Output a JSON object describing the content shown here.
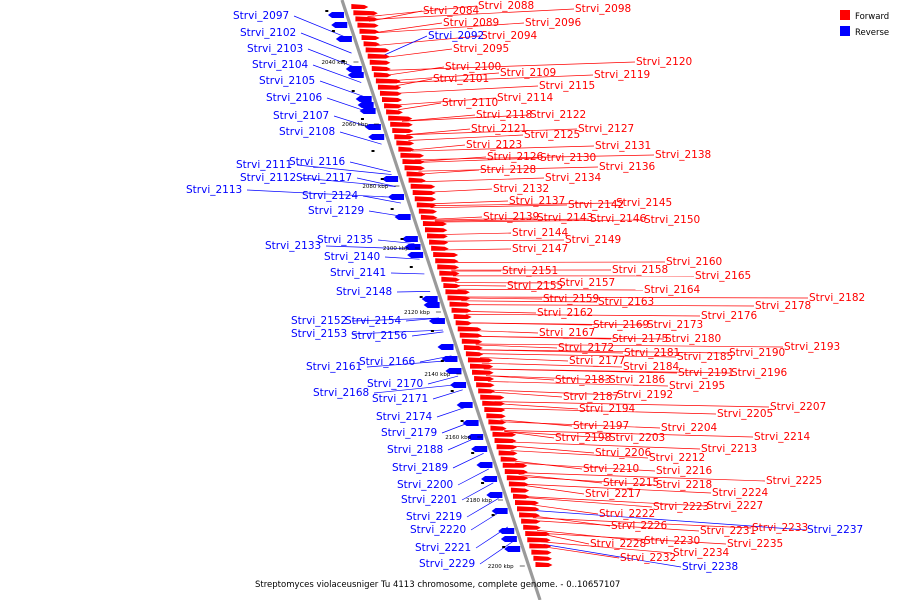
{
  "caption": "Streptomyces violaceusniger Tu 4113 chromosome, complete genome. - 0..10657107",
  "legend": [
    {
      "label": "Forward",
      "color": "#ff0000"
    },
    {
      "label": "Reverse",
      "color": "#0000ff"
    }
  ],
  "colors": {
    "forward": "#ff0000",
    "reverse": "#0000ff",
    "backbone": "#999999"
  },
  "scale_ticks": [
    "2040 kbp",
    "2060 kbp",
    "2080 kbp",
    "2100 kbp",
    "2120 kbp",
    "2140 kbp",
    "2160 kbp",
    "2180 kbp",
    "2200 kbp"
  ],
  "forward_genes": [
    "Strvi_2084",
    "Strvi_2088",
    "Strvi_2089",
    "Strvi_2096",
    "Strvi_2098",
    "Strvi_2094",
    "Strvi_2095",
    "Strvi_2100",
    "Strvi_2101",
    "Strvi_2109",
    "Strvi_2120",
    "Strvi_2119",
    "Strvi_2115",
    "Strvi_2114",
    "Strvi_2110",
    "Strvi_2118",
    "Strvi_2122",
    "Strvi_2127",
    "Strvi_2121",
    "Strvi_2125",
    "Strvi_2123",
    "Strvi_2131",
    "Strvi_2126",
    "Strvi_2130",
    "Strvi_2138",
    "Strvi_2136",
    "Strvi_2128",
    "Strvi_2134",
    "Strvi_2132",
    "Strvi_2137",
    "Strvi_2142",
    "Strvi_2145",
    "Strvi_2139",
    "Strvi_2143",
    "Strvi_2146",
    "Strvi_2150",
    "Strvi_2144",
    "Strvi_2149",
    "Strvi_2147",
    "Strvi_2160",
    "Strvi_2151",
    "Strvi_2158",
    "Strvi_2165",
    "Strvi_2157",
    "Strvi_2155",
    "Strvi_2164",
    "Strvi_2159",
    "Strvi_2163",
    "Strvi_2182",
    "Strvi_2178",
    "Strvi_2162",
    "Strvi_2176",
    "Strvi_2169",
    "Strvi_2173",
    "Strvi_2167",
    "Strvi_2175",
    "Strvi_2180",
    "Strvi_2193",
    "Strvi_2172",
    "Strvi_2181",
    "Strvi_2185",
    "Strvi_2190",
    "Strvi_2177",
    "Strvi_2184",
    "Strvi_2191",
    "Strvi_2196",
    "Strvi_2183",
    "Strvi_2186",
    "Strvi_2195",
    "Strvi_2187",
    "Strvi_2192",
    "Strvi_2207",
    "Strvi_2194",
    "Strvi_2205",
    "Strvi_2197",
    "Strvi_2204",
    "Strvi_2214",
    "Strvi_2198",
    "Strvi_2203",
    "Strvi_2213",
    "Strvi_2206",
    "Strvi_2212",
    "Strvi_2210",
    "Strvi_2216",
    "Strvi_2225",
    "Strvi_2215",
    "Strvi_2218",
    "Strvi_2224",
    "Strvi_2217",
    "Strvi_2223",
    "Strvi_2227",
    "Strvi_2222",
    "Strvi_2231",
    "Strvi_2233",
    "Strvi_2226",
    "Strvi_2228",
    "Strvi_2230",
    "Strvi_2235",
    "Strvi_2234",
    "Strvi_2232"
  ],
  "reverse_genes": [
    "Strvi_2097",
    "Strvi_2102",
    "Strvi_2103",
    "Strvi_2104",
    "Strvi_2105",
    "Strvi_2106",
    "Strvi_2107",
    "Strvi_2108",
    "Strvi_2111",
    "Strvi_2116",
    "Strvi_2112",
    "Strvi_2117",
    "Strvi_2113",
    "Strvi_2124",
    "Strvi_2129",
    "Strvi_2135",
    "Strvi_2133",
    "Strvi_2140",
    "Strvi_2141",
    "Strvi_2148",
    "Strvi_2152",
    "Strvi_2154",
    "Strvi_2153",
    "Strvi_2156",
    "Strvi_2166",
    "Strvi_2161",
    "Strvi_2170",
    "Strvi_2168",
    "Strvi_2171",
    "Strvi_2174",
    "Strvi_2179",
    "Strvi_2188",
    "Strvi_2189",
    "Strvi_2200",
    "Strvi_2201",
    "Strvi_2219",
    "Strvi_2220",
    "Strvi_2221",
    "Strvi_2229",
    "Strvi_2092",
    "Strvi_2237",
    "Strvi_2238"
  ]
}
